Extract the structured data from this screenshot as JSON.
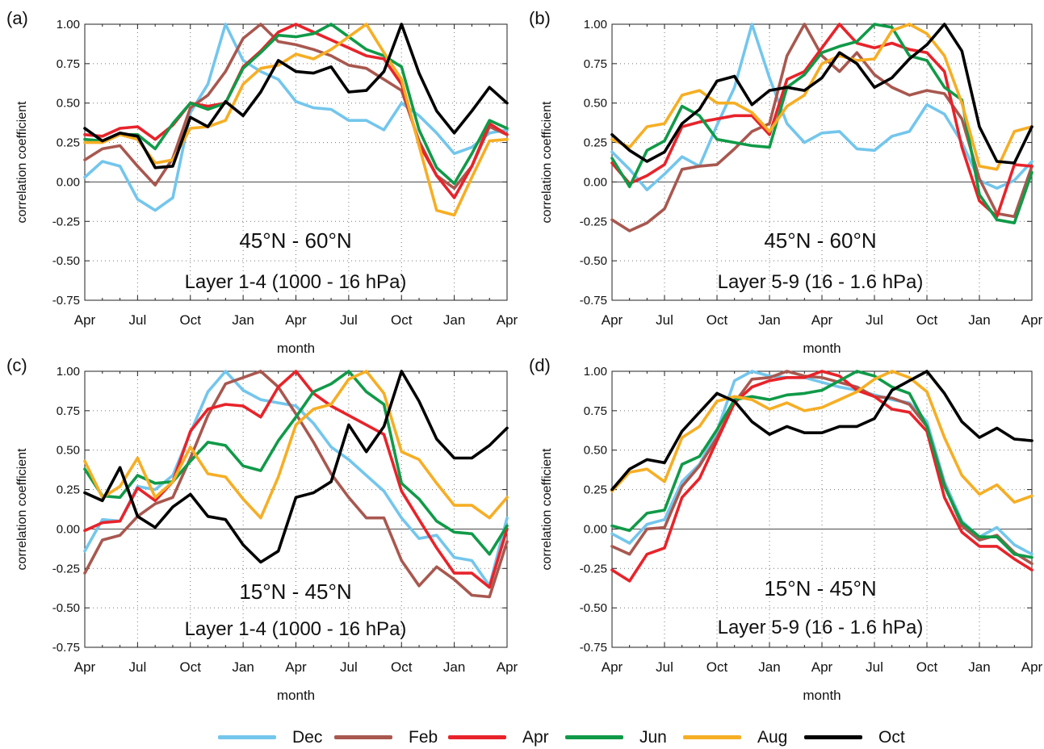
{
  "legend": [
    {
      "name": "Dec",
      "color": "#73c6ec"
    },
    {
      "name": "Feb",
      "color": "#a8584f"
    },
    {
      "name": "Apr",
      "color": "#e8232a"
    },
    {
      "name": "Jun",
      "color": "#109a48"
    },
    {
      "name": "Aug",
      "color": "#f6ae24"
    },
    {
      "name": "Oct",
      "color": "#000000"
    }
  ],
  "chart_data": [
    {
      "type": "line",
      "panel_label": "(a)",
      "annotation_lines": [
        "45°N - 60°N",
        "Layer 1-4  (1000 - 16 hPa)"
      ],
      "xlabel": "month",
      "ylabel": "correlation coefficient",
      "x_tick_labels": [
        "Apr",
        "Jul",
        "Oct",
        "Jan",
        "Apr",
        "Jul",
        "Oct",
        "Jan",
        "Apr"
      ],
      "y_tick_labels": [
        "1.00",
        "0.75",
        "0.50",
        "0.25",
        "0.00",
        "-0.25",
        "-0.50",
        "-0.75"
      ],
      "ylim": [
        -0.75,
        1.0
      ],
      "x_points": 25,
      "grid": true,
      "series": [
        {
          "name": "Dec",
          "color": "#73c6ec",
          "values": [
            0.03,
            0.13,
            0.1,
            -0.11,
            -0.18,
            -0.1,
            0.44,
            0.62,
            1.0,
            0.77,
            0.7,
            0.65,
            0.51,
            0.47,
            0.46,
            0.39,
            0.39,
            0.33,
            0.5,
            0.42,
            0.31,
            0.18,
            0.22,
            0.31,
            0.33
          ]
        },
        {
          "name": "Feb",
          "color": "#a8584f",
          "values": [
            0.14,
            0.21,
            0.23,
            0.1,
            -0.02,
            0.15,
            0.47,
            0.55,
            0.7,
            0.91,
            1.0,
            0.89,
            0.87,
            0.84,
            0.8,
            0.74,
            0.72,
            0.65,
            0.58,
            0.26,
            0.04,
            -0.04,
            0.1,
            0.35,
            0.3
          ]
        },
        {
          "name": "Apr",
          "color": "#e8232a",
          "values": [
            0.3,
            0.29,
            0.34,
            0.35,
            0.27,
            0.36,
            0.5,
            0.48,
            0.5,
            0.73,
            0.83,
            0.95,
            1.0,
            0.95,
            0.9,
            0.85,
            0.8,
            0.78,
            0.62,
            0.24,
            0.04,
            -0.1,
            0.1,
            0.37,
            0.3
          ]
        },
        {
          "name": "Jun",
          "color": "#109a48",
          "values": [
            0.27,
            0.26,
            0.3,
            0.3,
            0.21,
            0.37,
            0.5,
            0.46,
            0.5,
            0.72,
            0.82,
            0.93,
            0.92,
            0.94,
            1.0,
            0.92,
            0.84,
            0.8,
            0.73,
            0.33,
            0.09,
            -0.01,
            0.18,
            0.39,
            0.34
          ]
        },
        {
          "name": "Aug",
          "color": "#f6ae24",
          "values": [
            0.25,
            0.25,
            0.3,
            0.27,
            0.12,
            0.14,
            0.34,
            0.35,
            0.39,
            0.62,
            0.72,
            0.74,
            0.81,
            0.78,
            0.84,
            0.92,
            1.0,
            0.82,
            0.65,
            0.23,
            -0.18,
            -0.21,
            0.03,
            0.26,
            0.27
          ]
        },
        {
          "name": "Oct",
          "color": "#000000",
          "values": [
            0.34,
            0.26,
            0.31,
            0.29,
            0.09,
            0.1,
            0.41,
            0.35,
            0.51,
            0.42,
            0.57,
            0.77,
            0.7,
            0.69,
            0.73,
            0.57,
            0.58,
            0.7,
            1.0,
            0.69,
            0.45,
            0.31,
            0.45,
            0.6,
            0.5
          ]
        }
      ]
    },
    {
      "type": "line",
      "panel_label": "(b)",
      "annotation_lines": [
        "45°N - 60°N",
        "Layer 5-9  (16 - 1.6 hPa)"
      ],
      "xlabel": "month",
      "ylabel": "correlation coefficient",
      "x_tick_labels": [
        "Apr",
        "Jul",
        "Oct",
        "Jan",
        "Apr",
        "Jul",
        "Oct",
        "Jan",
        "Apr"
      ],
      "y_tick_labels": [
        "1.00",
        "0.75",
        "0.50",
        "0.25",
        "0.00",
        "-0.25",
        "-0.50",
        "-0.75"
      ],
      "ylim": [
        -0.75,
        1.0
      ],
      "x_points": 25,
      "grid": true,
      "series": [
        {
          "name": "Dec",
          "color": "#73c6ec",
          "values": [
            0.19,
            0.08,
            -0.05,
            0.05,
            0.16,
            0.1,
            0.36,
            0.6,
            1.0,
            0.66,
            0.37,
            0.25,
            0.31,
            0.32,
            0.21,
            0.2,
            0.29,
            0.32,
            0.49,
            0.43,
            0.25,
            0.01,
            -0.04,
            0.01,
            0.13
          ]
        },
        {
          "name": "Feb",
          "color": "#a8584f",
          "values": [
            -0.24,
            -0.31,
            -0.26,
            -0.17,
            0.08,
            0.1,
            0.11,
            0.21,
            0.32,
            0.37,
            0.8,
            1.0,
            0.8,
            0.7,
            0.82,
            0.68,
            0.6,
            0.55,
            0.58,
            0.56,
            0.4,
            0.02,
            -0.2,
            -0.22,
            0.1
          ]
        },
        {
          "name": "Apr",
          "color": "#e8232a",
          "values": [
            0.12,
            -0.01,
            0.04,
            0.11,
            0.35,
            0.38,
            0.4,
            0.42,
            0.42,
            0.3,
            0.65,
            0.7,
            0.85,
            1.0,
            0.88,
            0.85,
            0.88,
            0.84,
            0.82,
            0.7,
            0.22,
            -0.12,
            -0.22,
            0.11,
            0.1
          ]
        },
        {
          "name": "Jun",
          "color": "#109a48",
          "values": [
            0.15,
            -0.03,
            0.2,
            0.26,
            0.48,
            0.42,
            0.27,
            0.25,
            0.23,
            0.22,
            0.6,
            0.68,
            0.82,
            0.86,
            0.89,
            1.0,
            0.98,
            0.8,
            0.77,
            0.6,
            0.52,
            -0.08,
            -0.24,
            -0.26,
            0.06
          ]
        },
        {
          "name": "Aug",
          "color": "#f6ae24",
          "values": [
            0.27,
            0.22,
            0.35,
            0.37,
            0.55,
            0.58,
            0.5,
            0.5,
            0.44,
            0.32,
            0.48,
            0.55,
            0.75,
            0.8,
            0.77,
            0.78,
            0.96,
            1.0,
            0.94,
            0.8,
            0.5,
            0.1,
            0.08,
            0.32,
            0.35
          ]
        },
        {
          "name": "Oct",
          "color": "#000000",
          "values": [
            0.3,
            0.2,
            0.13,
            0.19,
            0.37,
            0.46,
            0.64,
            0.67,
            0.49,
            0.58,
            0.6,
            0.58,
            0.66,
            0.82,
            0.75,
            0.6,
            0.66,
            0.78,
            0.87,
            1.0,
            0.83,
            0.35,
            0.13,
            0.12,
            0.35
          ]
        }
      ]
    },
    {
      "type": "line",
      "panel_label": "(c)",
      "annotation_lines": [
        "15°N - 45°N",
        "Layer 1-4  (1000 - 16 hPa)"
      ],
      "xlabel": "month",
      "ylabel": "correlation coefficient",
      "x_tick_labels": [
        "Apr",
        "Jul",
        "Oct",
        "Jan",
        "Apr",
        "Jul",
        "Oct",
        "Jan",
        "Apr"
      ],
      "y_tick_labels": [
        "1.00",
        "0.75",
        "0.50",
        "0.25",
        "0.00",
        "-0.25",
        "-0.50",
        "-0.75"
      ],
      "ylim": [
        -0.75,
        1.0
      ],
      "x_points": 25,
      "grid": true,
      "series": [
        {
          "name": "Dec",
          "color": "#73c6ec",
          "values": [
            -0.14,
            0.06,
            0.05,
            0.27,
            0.25,
            0.34,
            0.61,
            0.87,
            1.0,
            0.88,
            0.82,
            0.8,
            0.78,
            0.67,
            0.52,
            0.44,
            0.34,
            0.24,
            0.07,
            -0.06,
            -0.04,
            -0.18,
            -0.2,
            -0.36,
            0.07
          ]
        },
        {
          "name": "Feb",
          "color": "#a8584f",
          "values": [
            -0.28,
            -0.07,
            -0.04,
            0.08,
            0.16,
            0.2,
            0.45,
            0.72,
            0.92,
            0.96,
            1.0,
            0.9,
            0.73,
            0.55,
            0.35,
            0.2,
            0.07,
            0.07,
            -0.2,
            -0.36,
            -0.24,
            -0.32,
            -0.42,
            -0.43,
            -0.08
          ]
        },
        {
          "name": "Apr",
          "color": "#e8232a",
          "values": [
            -0.01,
            0.04,
            0.05,
            0.26,
            0.18,
            0.3,
            0.62,
            0.76,
            0.79,
            0.78,
            0.71,
            0.9,
            1.0,
            0.86,
            0.78,
            0.72,
            0.66,
            0.6,
            0.24,
            0.06,
            -0.12,
            -0.28,
            -0.28,
            -0.37,
            0.0
          ]
        },
        {
          "name": "Jun",
          "color": "#109a48",
          "values": [
            0.38,
            0.21,
            0.2,
            0.34,
            0.29,
            0.3,
            0.43,
            0.55,
            0.53,
            0.4,
            0.37,
            0.56,
            0.71,
            0.87,
            0.92,
            1.0,
            0.87,
            0.79,
            0.29,
            0.19,
            0.05,
            -0.02,
            -0.03,
            -0.16,
            0.02
          ]
        },
        {
          "name": "Aug",
          "color": "#f6ae24",
          "values": [
            0.43,
            0.2,
            0.27,
            0.45,
            0.2,
            0.3,
            0.52,
            0.35,
            0.33,
            0.19,
            0.07,
            0.33,
            0.66,
            0.76,
            0.79,
            0.95,
            1.0,
            0.86,
            0.49,
            0.44,
            0.29,
            0.15,
            0.15,
            0.07,
            0.2
          ]
        },
        {
          "name": "Oct",
          "color": "#000000",
          "values": [
            0.23,
            0.18,
            0.39,
            0.08,
            0.01,
            0.14,
            0.22,
            0.08,
            0.06,
            -0.1,
            -0.21,
            -0.14,
            0.2,
            0.23,
            0.3,
            0.66,
            0.49,
            0.65,
            1.0,
            0.81,
            0.57,
            0.45,
            0.45,
            0.53,
            0.64
          ]
        }
      ]
    },
    {
      "type": "line",
      "panel_label": "(d)",
      "annotation_lines": [
        "15°N - 45°N",
        "Layer 5-9  (16 - 1.6 hPa)"
      ],
      "xlabel": "month",
      "ylabel": "correlation coefficient",
      "x_tick_labels": [
        "Apr",
        "Jul",
        "Oct",
        "Jan",
        "Apr",
        "Jul",
        "Oct",
        "Jan",
        "Apr"
      ],
      "y_tick_labels": [
        "1.00",
        "0.75",
        "0.50",
        "0.25",
        "0.00",
        "-0.25",
        "-0.50",
        "-0.75"
      ],
      "ylim": [
        -0.75,
        1.0
      ],
      "x_points": 25,
      "grid": true,
      "series": [
        {
          "name": "Dec",
          "color": "#73c6ec",
          "values": [
            -0.03,
            -0.09,
            0.03,
            0.06,
            0.3,
            0.41,
            0.62,
            0.94,
            1.0,
            0.97,
            0.96,
            0.96,
            0.93,
            0.9,
            0.88,
            0.85,
            0.82,
            0.8,
            0.68,
            0.3,
            0.05,
            -0.05,
            0.01,
            -0.1,
            -0.16
          ]
        },
        {
          "name": "Feb",
          "color": "#a8584f",
          "values": [
            -0.11,
            -0.16,
            0.0,
            0.01,
            0.27,
            0.4,
            0.58,
            0.8,
            0.95,
            0.96,
            1.0,
            0.97,
            0.96,
            0.93,
            0.9,
            0.84,
            0.83,
            0.79,
            0.65,
            0.28,
            0.02,
            -0.07,
            -0.04,
            -0.15,
            -0.22
          ]
        },
        {
          "name": "Apr",
          "color": "#e8232a",
          "values": [
            -0.26,
            -0.33,
            -0.16,
            -0.12,
            0.2,
            0.32,
            0.56,
            0.8,
            0.9,
            0.94,
            0.96,
            0.96,
            1.0,
            0.97,
            0.88,
            0.84,
            0.76,
            0.74,
            0.62,
            0.2,
            -0.02,
            -0.11,
            -0.11,
            -0.19,
            -0.26
          ]
        },
        {
          "name": "Jun",
          "color": "#109a48",
          "values": [
            0.02,
            -0.01,
            0.1,
            0.12,
            0.41,
            0.46,
            0.63,
            0.82,
            0.84,
            0.82,
            0.85,
            0.86,
            0.88,
            0.94,
            1.0,
            0.97,
            0.9,
            0.86,
            0.65,
            0.27,
            0.04,
            -0.05,
            -0.05,
            -0.16,
            -0.18
          ]
        },
        {
          "name": "Aug",
          "color": "#f6ae24",
          "values": [
            0.24,
            0.36,
            0.38,
            0.3,
            0.58,
            0.65,
            0.81,
            0.84,
            0.82,
            0.76,
            0.8,
            0.75,
            0.77,
            0.82,
            0.87,
            0.95,
            1.0,
            0.96,
            0.87,
            0.58,
            0.34,
            0.22,
            0.28,
            0.17,
            0.21
          ]
        },
        {
          "name": "Oct",
          "color": "#000000",
          "values": [
            0.25,
            0.38,
            0.44,
            0.42,
            0.62,
            0.74,
            0.86,
            0.81,
            0.68,
            0.6,
            0.65,
            0.61,
            0.61,
            0.65,
            0.65,
            0.7,
            0.88,
            0.94,
            1.0,
            0.86,
            0.68,
            0.58,
            0.64,
            0.57,
            0.56
          ]
        }
      ]
    }
  ]
}
